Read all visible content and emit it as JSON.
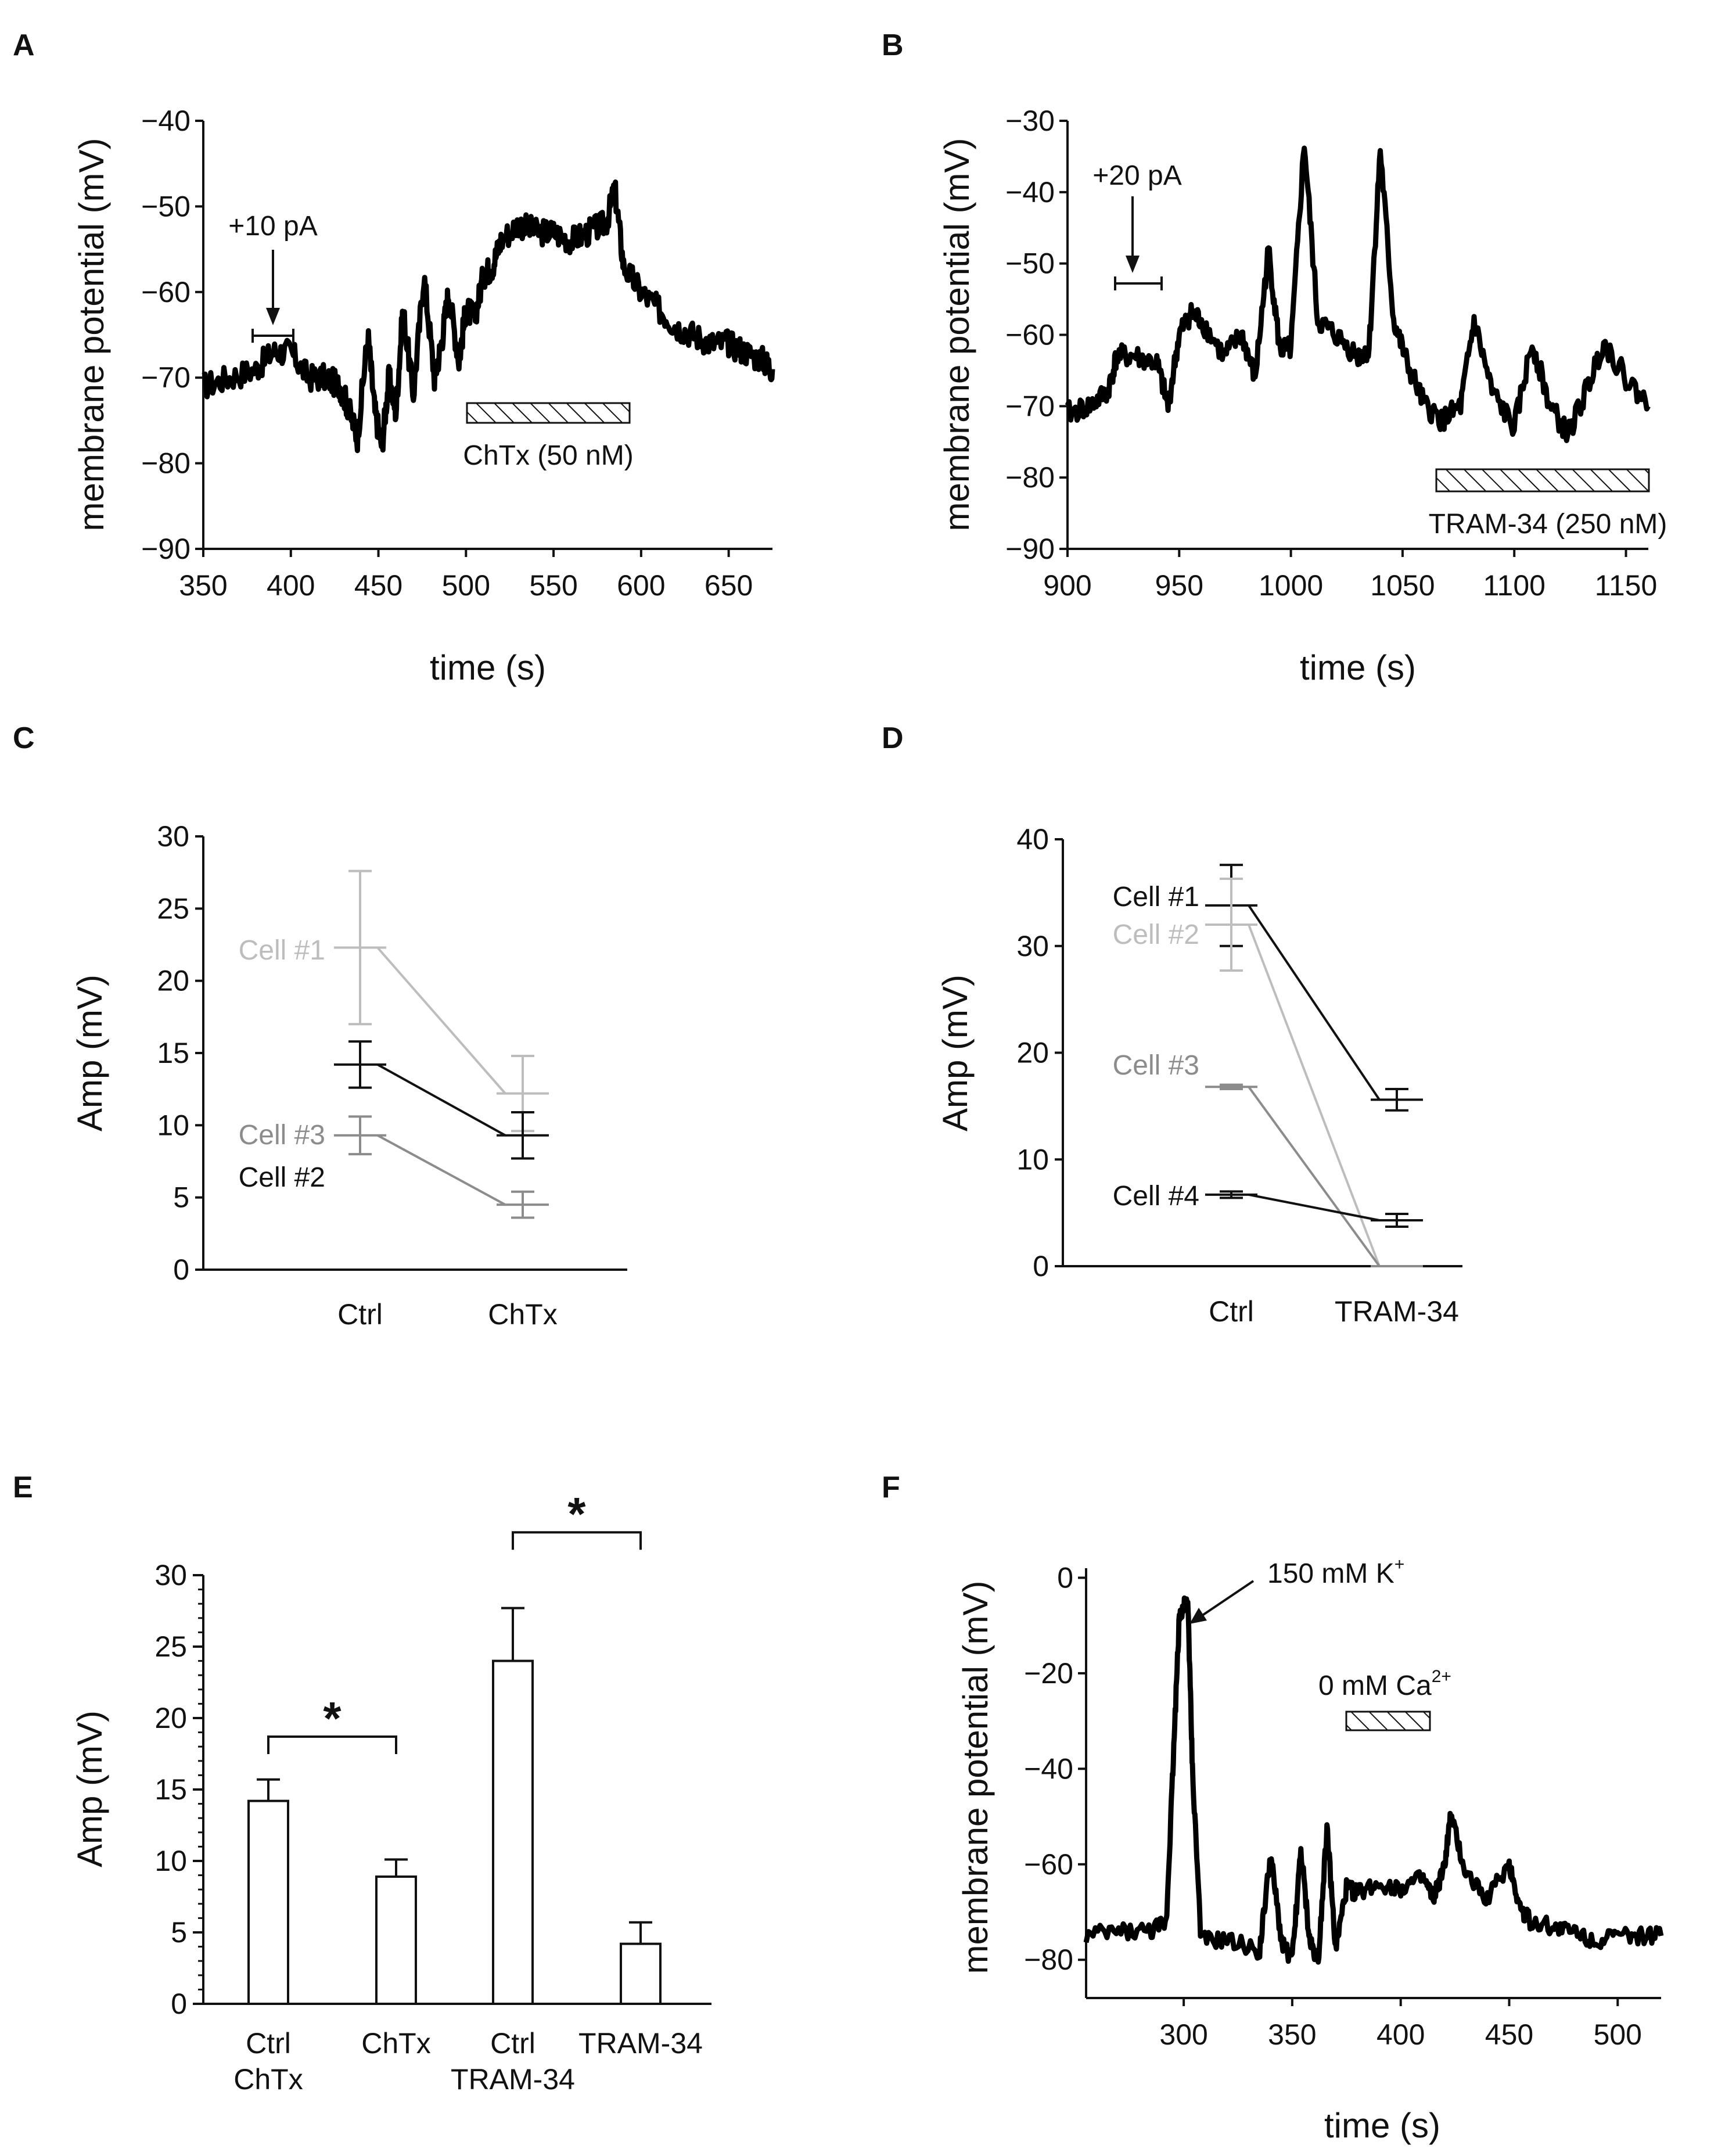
{
  "chart_data": [
    {
      "panel": "A",
      "type": "line",
      "xlabel": "time (s)",
      "ylabel": "membrane potential (mV)",
      "xlim": [
        350,
        675
      ],
      "ylim": [
        -90,
        -40
      ],
      "xticks": [
        350,
        400,
        450,
        500,
        550,
        600,
        650
      ],
      "yticks": [
        -40,
        -50,
        -60,
        -70,
        -80,
        -90
      ],
      "ytick_labels": [
        "−40",
        "−50",
        "−60",
        "−70",
        "−80",
        "−90"
      ],
      "series": [
        {
          "name": "membrane potential",
          "x": [
            350,
            365,
            380,
            390,
            400,
            410,
            420,
            428,
            432,
            438,
            444,
            448,
            452,
            456,
            460,
            464,
            470,
            476,
            482,
            486,
            490,
            496,
            500,
            505,
            510,
            515,
            520,
            530,
            540,
            550,
            560,
            570,
            580,
            585,
            590,
            600,
            610,
            620,
            630,
            640,
            650,
            660,
            670,
            675
          ],
          "y": [
            -71,
            -70,
            -69,
            -67,
            -67,
            -70,
            -70,
            -71,
            -73,
            -77,
            -65,
            -74,
            -78,
            -70,
            -74,
            -62,
            -72,
            -58,
            -70,
            -66,
            -60,
            -68,
            -62,
            -63,
            -58,
            -57,
            -54,
            -52,
            -53,
            -53,
            -54,
            -53,
            -52,
            -48,
            -57,
            -60,
            -62,
            -64,
            -65,
            -66,
            -66,
            -67,
            -68,
            -69
          ]
        }
      ],
      "annotations": [
        {
          "text": "+10 pA",
          "x": 390,
          "y": -66
        },
        {
          "text": "ChTx (50 nM)",
          "x_start": 502,
          "x_end": 595
        }
      ]
    },
    {
      "panel": "B",
      "type": "line",
      "xlabel": "time (s)",
      "ylabel": "membrane potential (mV)",
      "xlim": [
        900,
        1160
      ],
      "ylim": [
        -90,
        -30
      ],
      "xticks": [
        900,
        950,
        1000,
        1050,
        1100,
        1150
      ],
      "yticks": [
        -30,
        -40,
        -50,
        -60,
        -70,
        -80,
        -90
      ],
      "ytick_labels": [
        "−30",
        "−40",
        "−50",
        "−60",
        "−70",
        "−80",
        "−90"
      ],
      "series": [
        {
          "name": "membrane potential",
          "x": [
            900,
            910,
            918,
            922,
            930,
            940,
            945,
            950,
            955,
            960,
            970,
            978,
            984,
            990,
            995,
            1000,
            1006,
            1012,
            1020,
            1030,
            1035,
            1040,
            1046,
            1052,
            1060,
            1068,
            1076,
            1082,
            1090,
            1100,
            1108,
            1116,
            1124,
            1132,
            1140,
            1150,
            1160
          ],
          "y": [
            -71,
            -70,
            -68,
            -63,
            -63,
            -64,
            -70,
            -60,
            -57,
            -58,
            -63,
            -60,
            -66,
            -48,
            -62,
            -62,
            -33,
            -58,
            -60,
            -63,
            -62,
            -34,
            -58,
            -64,
            -70,
            -72,
            -70,
            -58,
            -68,
            -73,
            -61,
            -70,
            -74,
            -68,
            -61,
            -66,
            -70
          ]
        }
      ],
      "annotations": [
        {
          "text": "+20 pA",
          "x": 930,
          "y": -53
        },
        {
          "text": "TRAM-34 (250 nM)",
          "x_start": 1065,
          "x_end": 1160
        }
      ]
    },
    {
      "panel": "C",
      "type": "line",
      "ylabel": "Amp (mV)",
      "categories": [
        "Ctrl",
        "ChTx"
      ],
      "ylim": [
        0,
        30
      ],
      "yticks": [
        0,
        5,
        10,
        15,
        20,
        25,
        30
      ],
      "series": [
        {
          "name": "Cell #1",
          "values": [
            22.3,
            12.2
          ],
          "errors": [
            5.3,
            2.6
          ],
          "color": "#bdbdbd"
        },
        {
          "name": "Cell #2",
          "values": [
            14.2,
            9.3
          ],
          "errors": [
            1.6,
            1.6
          ],
          "color": "#111111"
        },
        {
          "name": "Cell #3",
          "values": [
            9.3,
            4.5
          ],
          "errors": [
            1.3,
            0.9
          ],
          "color": "#8c8c8c"
        }
      ]
    },
    {
      "panel": "D",
      "type": "line",
      "ylabel": "Amp (mV)",
      "categories": [
        "Ctrl",
        "TRAM-34"
      ],
      "ylim": [
        0,
        40
      ],
      "yticks": [
        0,
        10,
        20,
        30,
        40
      ],
      "series": [
        {
          "name": "Cell #1",
          "values": [
            33.8,
            15.6
          ],
          "errors": [
            3.8,
            1.0
          ],
          "color": "#111111"
        },
        {
          "name": "Cell #2",
          "values": [
            32.0,
            0
          ],
          "errors": [
            4.3,
            0
          ],
          "color": "#bdbdbd"
        },
        {
          "name": "Cell #3",
          "values": [
            16.8,
            0
          ],
          "errors": [
            0.2,
            0
          ],
          "color": "#8c8c8c"
        },
        {
          "name": "Cell #4",
          "values": [
            6.7,
            4.3
          ],
          "errors": [
            0.3,
            0.6
          ],
          "color": "#111111"
        }
      ]
    },
    {
      "panel": "E",
      "type": "bar",
      "ylabel": "Amp (mV)",
      "ylim": [
        0,
        30
      ],
      "yticks": [
        0,
        5,
        10,
        15,
        20,
        25,
        30
      ],
      "categories": [
        [
          "Ctrl",
          "ChTx"
        ],
        [
          "ChTx",
          ""
        ],
        [
          "Ctrl",
          "TRAM-34"
        ],
        [
          "TRAM-34",
          ""
        ]
      ],
      "values": [
        14.2,
        8.9,
        24.0,
        4.2
      ],
      "errors": [
        1.5,
        1.2,
        3.7,
        1.5
      ],
      "significance": [
        {
          "pair": [
            0,
            1
          ],
          "text": "*",
          "height": 18.7
        },
        {
          "pair": [
            2,
            3
          ],
          "text": "*",
          "height": 33.0
        }
      ]
    },
    {
      "panel": "F",
      "type": "line",
      "xlabel": "time (s)",
      "ylabel": "membrane potential (mV)",
      "xlim": [
        255,
        520
      ],
      "ylim": [
        -88,
        2
      ],
      "xticks": [
        300,
        350,
        400,
        450,
        500
      ],
      "yticks": [
        0,
        -20,
        -40,
        -60,
        -80
      ],
      "ytick_labels": [
        "0",
        "−20",
        "−40",
        "−60",
        "−80"
      ],
      "series": [
        {
          "name": "membrane potential",
          "x": [
            255,
            270,
            285,
            292,
            295,
            298,
            300,
            302,
            304,
            308,
            320,
            335,
            340,
            345,
            350,
            354,
            358,
            362,
            366,
            370,
            375,
            380,
            390,
            400,
            410,
            415,
            420,
            423,
            430,
            440,
            450,
            455,
            460,
            470,
            480,
            490,
            500,
            510,
            520
          ],
          "y": [
            -75,
            -74,
            -74,
            -72,
            -40,
            -8,
            -6,
            -6,
            -40,
            -76,
            -76,
            -78,
            -58,
            -76,
            -80,
            -57,
            -76,
            -80,
            -52,
            -78,
            -65,
            -66,
            -64,
            -65,
            -63,
            -67,
            -61,
            -50,
            -62,
            -67,
            -60,
            -69,
            -72,
            -73,
            -74,
            -76,
            -75,
            -75,
            -75
          ]
        }
      ],
      "annotations": [
        {
          "text": "150 mM K",
          "superscript": "+",
          "x": 300,
          "y": -6
        },
        {
          "text": "0 mM Ca",
          "superscript": "2+",
          "x_start": 375,
          "x_end": 415
        }
      ]
    }
  ]
}
